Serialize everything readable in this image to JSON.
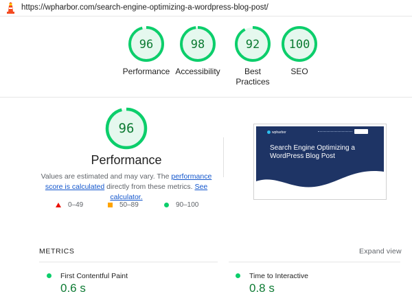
{
  "url_bar": {
    "url": "https://wpharbor.com/search-engine-optimizing-a-wordpress-blog-post/",
    "logo_icon": "lighthouse-icon"
  },
  "top_gauges": [
    {
      "label": "Performance",
      "score": "96",
      "value": 96
    },
    {
      "label": "Accessibility",
      "score": "98",
      "value": 98
    },
    {
      "label": "Best Practices",
      "score": "92",
      "value": 92
    },
    {
      "label": "SEO",
      "score": "100",
      "value": 100
    }
  ],
  "performance": {
    "score": "96",
    "value": 96,
    "title": "Performance",
    "desc_part1": "Values are estimated and may vary. The ",
    "desc_link1": "performance score is calculated",
    "desc_part2": " directly from these metrics. ",
    "desc_link2": "See calculator."
  },
  "legend": [
    {
      "range": "0–49",
      "icon": "red-triangle-icon",
      "color": "#eb0f00"
    },
    {
      "range": "50–89",
      "icon": "orange-square-icon",
      "color": "#ffa400"
    },
    {
      "range": "90–100",
      "icon": "green-circle-icon",
      "color": "#0cce6b"
    }
  ],
  "thumbnail": {
    "logo": "wpharbor",
    "title": "Search Engine Optimizing a WordPress Blog Post"
  },
  "metrics": {
    "header": "METRICS",
    "expand_label": "Expand view",
    "items": [
      {
        "label": "First Contentful Paint",
        "value": "0.6 s"
      },
      {
        "label": "Time to Interactive",
        "value": "0.8 s"
      }
    ]
  },
  "colors": {
    "pass": "#0cce6b",
    "pass_text": "#0c7a32",
    "gauge_bg": "#e5f8ee",
    "link": "#1155cc",
    "thumb_bg": "#1e3465"
  }
}
